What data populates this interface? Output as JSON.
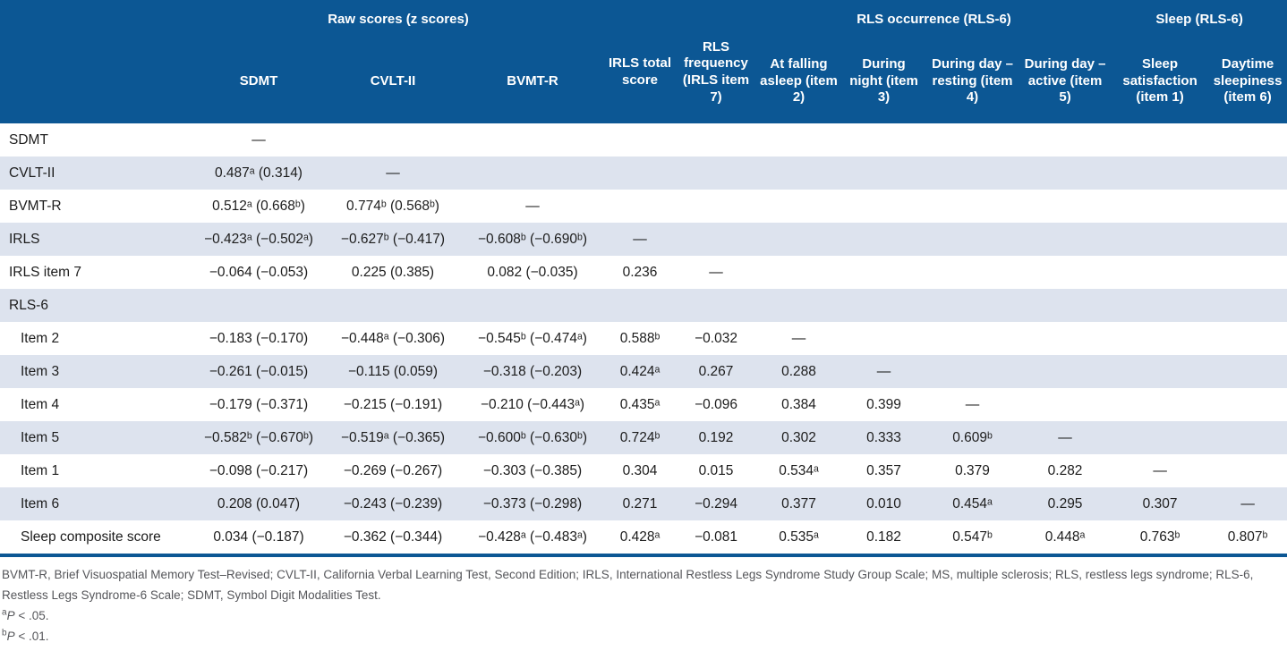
{
  "colors": {
    "header_bg": "#0c5794",
    "stripe": "#dde3ee",
    "rule": "#0c5794",
    "body_text": "#1c1c1c",
    "footnote_text": "#55565a"
  },
  "table": {
    "groups": {
      "raw_scores": "Raw scores (z scores)",
      "rls_occurrence": "RLS occurrence (RLS-6)",
      "sleep": "Sleep (RLS-6)"
    },
    "header": {
      "sdmt": "SDMT",
      "cvlt": "CVLT-II",
      "bvmt": "BVMT-R",
      "irls_total": "IRLS total score",
      "rls_frequency": "RLS frequency (IRLS item 7)",
      "at_falling_asleep": "At falling asleep (item 2)",
      "during_night": "During night (item 3)",
      "during_day_resting": "During day – resting (item 4)",
      "during_day_active": "During day – active (item 5)",
      "sleep_satisfaction": "Sleep satisfaction (item 1)",
      "daytime_sleepiness": "Daytime sleepiness (item 6)"
    },
    "rows": [
      {
        "label": "SDMT",
        "indent": false,
        "cells": [
          "—",
          "",
          "",
          "",
          "",
          "",
          "",
          "",
          "",
          "",
          ""
        ]
      },
      {
        "label": "CVLT-II",
        "indent": false,
        "cells": [
          "0.487ᵃ (0.314)",
          "—",
          "",
          "",
          "",
          "",
          "",
          "",
          "",
          "",
          ""
        ]
      },
      {
        "label": "BVMT-R",
        "indent": false,
        "cells": [
          "0.512ᵃ (0.668ᵇ)",
          "0.774ᵇ (0.568ᵇ)",
          "—",
          "",
          "",
          "",
          "",
          "",
          "",
          "",
          ""
        ]
      },
      {
        "label": "IRLS",
        "indent": false,
        "cells": [
          "−0.423ᵃ (−0.502ᵃ)",
          "−0.627ᵇ (−0.417)",
          "−0.608ᵇ (−0.690ᵇ)",
          "—",
          "",
          "",
          "",
          "",
          "",
          "",
          ""
        ]
      },
      {
        "label": "IRLS item 7",
        "indent": false,
        "cells": [
          "−0.064 (−0.053)",
          "0.225 (0.385)",
          "0.082 (−0.035)",
          "0.236",
          "—",
          "",
          "",
          "",
          "",
          "",
          ""
        ]
      },
      {
        "label": "RLS-6",
        "indent": false,
        "cells": [
          "",
          "",
          "",
          "",
          "",
          "",
          "",
          "",
          "",
          "",
          ""
        ]
      },
      {
        "label": "Item 2",
        "indent": true,
        "cells": [
          "−0.183 (−0.170)",
          "−0.448ᵃ (−0.306)",
          "−0.545ᵇ (−0.474ᵃ)",
          "0.588ᵇ",
          "−0.032",
          "—",
          "",
          "",
          "",
          "",
          ""
        ]
      },
      {
        "label": "Item 3",
        "indent": true,
        "cells": [
          "−0.261 (−0.015)",
          "−0.115 (0.059)",
          "−0.318 (−0.203)",
          "0.424ᵃ",
          "0.267",
          "0.288",
          "—",
          "",
          "",
          "",
          ""
        ]
      },
      {
        "label": "Item 4",
        "indent": true,
        "cells": [
          "−0.179 (−0.371)",
          "−0.215 (−0.191)",
          "−0.210 (−0.443ᵃ)",
          "0.435ᵃ",
          "−0.096",
          "0.384",
          "0.399",
          "—",
          "",
          "",
          ""
        ]
      },
      {
        "label": "Item 5",
        "indent": true,
        "cells": [
          "−0.582ᵇ (−0.670ᵇ)",
          "−0.519ᵃ (−0.365)",
          "−0.600ᵇ (−0.630ᵇ)",
          "0.724ᵇ",
          "0.192",
          "0.302",
          "0.333",
          "0.609ᵇ",
          "—",
          "",
          ""
        ]
      },
      {
        "label": "Item 1",
        "indent": true,
        "cells": [
          "−0.098 (−0.217)",
          "−0.269 (−0.267)",
          "−0.303 (−0.385)",
          "0.304",
          "0.015",
          "0.534ᵃ",
          "0.357",
          "0.379",
          "0.282",
          "—",
          ""
        ]
      },
      {
        "label": "Item 6",
        "indent": true,
        "cells": [
          "0.208 (0.047)",
          "−0.243 (−0.239)",
          "−0.373 (−0.298)",
          "0.271",
          "−0.294",
          "0.377",
          "0.010",
          "0.454ᵃ",
          "0.295",
          "0.307",
          "—"
        ]
      },
      {
        "label": "Sleep composite score",
        "indent": true,
        "cells": [
          "0.034 (−0.187)",
          "−0.362 (−0.344)",
          "−0.428ᵃ (−0.483ᵃ)",
          "0.428ᵃ",
          "−0.081",
          "0.535ᵃ",
          "0.182",
          "0.547ᵇ",
          "0.448ᵃ",
          "0.763ᵇ",
          "0.807ᵇ"
        ]
      }
    ]
  },
  "footnotes": {
    "abbreviations": "BVMT-R, Brief Visuospatial Memory Test–Revised; CVLT-II, California Verbal Learning Test, Second Edition; IRLS, International Restless Legs Syndrome Study Group Scale; MS, multiple sclerosis; RLS, restless legs syndrome; RLS-6, Restless Legs Syndrome-6 Scale; SDMT, Symbol Digit Modalities Test.",
    "note_a": {
      "marker": "a",
      "p": "P",
      "rest": " < .05."
    },
    "note_b": {
      "marker": "b",
      "p": "P",
      "rest": " < .01."
    }
  }
}
